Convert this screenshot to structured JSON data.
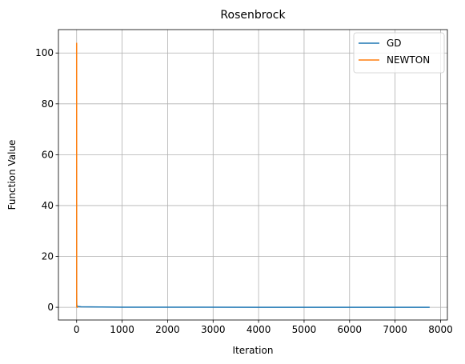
{
  "chart_data": {
    "type": "line",
    "title": "Rosenbrock",
    "xlabel": "Iteration",
    "ylabel": "Function Value",
    "xlim": [
      -400,
      8150
    ],
    "ylim": [
      -5,
      109.2
    ],
    "xticks": [
      0,
      1000,
      2000,
      3000,
      4000,
      5000,
      6000,
      7000,
      8000
    ],
    "yticks": [
      0,
      20,
      40,
      60,
      80,
      100
    ],
    "grid": true,
    "legend_position": "top-right",
    "series": [
      {
        "name": "GD",
        "color": "#1f77b4",
        "x": [
          0,
          1,
          2,
          3,
          5,
          10,
          30,
          100,
          500,
          1000,
          2000,
          4000,
          6000,
          7760
        ],
        "y": [
          104,
          6,
          2,
          1.2,
          0.8,
          0.5,
          0.3,
          0.2,
          0.1,
          0.05,
          0.02,
          0.01,
          0.005,
          0.0
        ]
      },
      {
        "name": "NEWTON",
        "color": "#ff7f0e",
        "x": [
          0,
          1,
          2,
          3,
          5,
          8,
          12,
          18,
          25
        ],
        "y": [
          104,
          0.5,
          0.2,
          0.1,
          0.05,
          0.02,
          0.01,
          0.005,
          0.0
        ]
      }
    ]
  }
}
